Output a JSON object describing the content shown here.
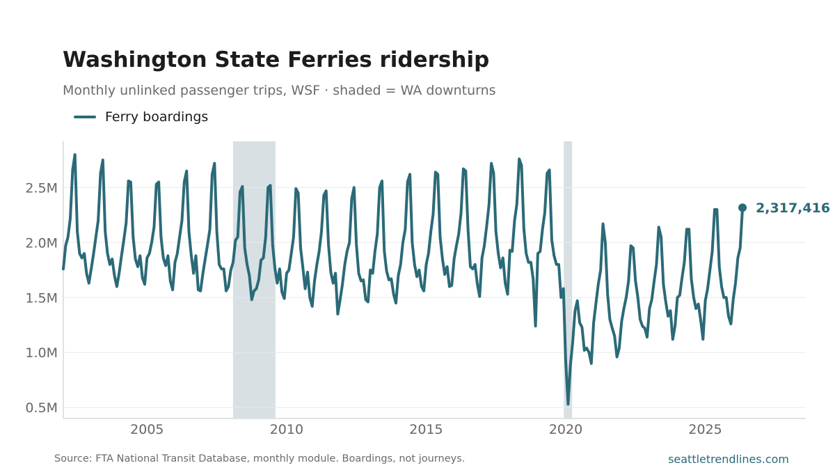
{
  "header": {
    "title": "Washington State Ferries ridership",
    "subtitle": "Monthly unlinked passenger trips, WSF · shaded = WA downturns"
  },
  "footer": {
    "source": "Source: FTA National Transit Database, monthly module. Boardings, not journeys.",
    "brand": "seattletrendlines.com"
  },
  "colors": {
    "line": "#2b6a78",
    "shade": "#d8e0e4",
    "grid": "#e6e9eb",
    "axis_text": "#666666"
  },
  "chart_data": {
    "type": "line",
    "title": "Washington State Ferries ridership",
    "subtitle": "Monthly unlinked passenger trips, WSF · shaded = WA downturns",
    "xlabel": "",
    "ylabel": "",
    "xlim": [
      2002.0,
      2028.6
    ],
    "ylim": [
      0.4,
      2.92
    ],
    "y_unit": "millions",
    "grid": "horizontal",
    "legend_position": "top-left",
    "x_ticks": [
      2005,
      2010,
      2015,
      2020,
      2025
    ],
    "x_tick_labels": [
      "2005",
      "2010",
      "2015",
      "2020",
      "2025"
    ],
    "y_ticks": [
      0.5,
      1.0,
      1.5,
      2.0,
      2.5
    ],
    "y_tick_labels": [
      "0.5M",
      "1.0M",
      "1.5M",
      "2.0M",
      "2.5M"
    ],
    "shaded_periods": [
      [
        2008.08,
        2009.6
      ],
      [
        2019.93,
        2020.23
      ]
    ],
    "last_point_label": "2,317,416",
    "last_point_value": 2317416,
    "series": [
      {
        "name": "Ferry boardings",
        "start": 2002.0,
        "interval_months": 1,
        "values": [
          1.76,
          1.97,
          2.05,
          2.22,
          2.66,
          2.8,
          2.1,
          1.9,
          1.86,
          1.9,
          1.72,
          1.63,
          1.76,
          1.9,
          2.05,
          2.2,
          2.63,
          2.75,
          2.1,
          1.9,
          1.8,
          1.85,
          1.7,
          1.6,
          1.72,
          1.88,
          2.02,
          2.18,
          2.56,
          2.55,
          2.05,
          1.85,
          1.78,
          1.88,
          1.68,
          1.62,
          1.86,
          1.9,
          2.0,
          2.14,
          2.53,
          2.55,
          2.05,
          1.86,
          1.79,
          1.88,
          1.65,
          1.57,
          1.82,
          1.9,
          2.05,
          2.2,
          2.55,
          2.65,
          2.1,
          1.88,
          1.72,
          1.88,
          1.57,
          1.56,
          1.72,
          1.85,
          1.98,
          2.12,
          2.62,
          2.72,
          2.1,
          1.8,
          1.76,
          1.76,
          1.56,
          1.6,
          1.75,
          1.82,
          2.02,
          2.05,
          2.46,
          2.51,
          1.95,
          1.8,
          1.7,
          1.48,
          1.56,
          1.58,
          1.66,
          1.84,
          1.86,
          2.05,
          2.5,
          2.52,
          1.98,
          1.76,
          1.63,
          1.76,
          1.55,
          1.49,
          1.72,
          1.75,
          1.9,
          2.05,
          2.49,
          2.45,
          1.95,
          1.77,
          1.58,
          1.73,
          1.5,
          1.42,
          1.65,
          1.8,
          1.92,
          2.1,
          2.43,
          2.47,
          1.98,
          1.73,
          1.63,
          1.72,
          1.35,
          1.48,
          1.62,
          1.8,
          1.92,
          2.0,
          2.4,
          2.5,
          1.98,
          1.72,
          1.65,
          1.66,
          1.48,
          1.46,
          1.75,
          1.72,
          1.92,
          2.08,
          2.5,
          2.56,
          1.92,
          1.74,
          1.66,
          1.67,
          1.53,
          1.45,
          1.7,
          1.8,
          2.0,
          2.12,
          2.55,
          2.62,
          2.0,
          1.8,
          1.69,
          1.75,
          1.6,
          1.56,
          1.8,
          1.9,
          2.1,
          2.26,
          2.64,
          2.62,
          2.05,
          1.85,
          1.71,
          1.78,
          1.6,
          1.61,
          1.85,
          1.97,
          2.08,
          2.27,
          2.67,
          2.65,
          2.12,
          1.78,
          1.76,
          1.8,
          1.62,
          1.51,
          1.86,
          1.97,
          2.15,
          2.34,
          2.72,
          2.63,
          2.1,
          1.9,
          1.77,
          1.86,
          1.63,
          1.53,
          1.93,
          1.92,
          2.2,
          2.35,
          2.76,
          2.7,
          2.12,
          1.9,
          1.82,
          1.82,
          1.67,
          1.24,
          1.9,
          1.92,
          2.12,
          2.27,
          2.63,
          2.66,
          2.02,
          1.88,
          1.8,
          1.8,
          1.5,
          1.58,
          0.92,
          0.53,
          0.88,
          1.1,
          1.38,
          1.47,
          1.27,
          1.23,
          1.02,
          1.04,
          1.0,
          0.9,
          1.27,
          1.45,
          1.62,
          1.75,
          2.17,
          2.0,
          1.53,
          1.3,
          1.22,
          1.15,
          0.96,
          1.04,
          1.28,
          1.4,
          1.5,
          1.65,
          1.97,
          1.95,
          1.65,
          1.5,
          1.3,
          1.24,
          1.22,
          1.14,
          1.4,
          1.48,
          1.65,
          1.8,
          2.14,
          2.05,
          1.62,
          1.46,
          1.33,
          1.38,
          1.12,
          1.24,
          1.5,
          1.52,
          1.68,
          1.82,
          2.12,
          2.12,
          1.67,
          1.5,
          1.4,
          1.44,
          1.3,
          1.12,
          1.47,
          1.58,
          1.75,
          1.92,
          2.3,
          2.3,
          1.78,
          1.6,
          1.5,
          1.5,
          1.33,
          1.26,
          1.48,
          1.63,
          1.86,
          1.95,
          2.317
        ]
      }
    ]
  }
}
